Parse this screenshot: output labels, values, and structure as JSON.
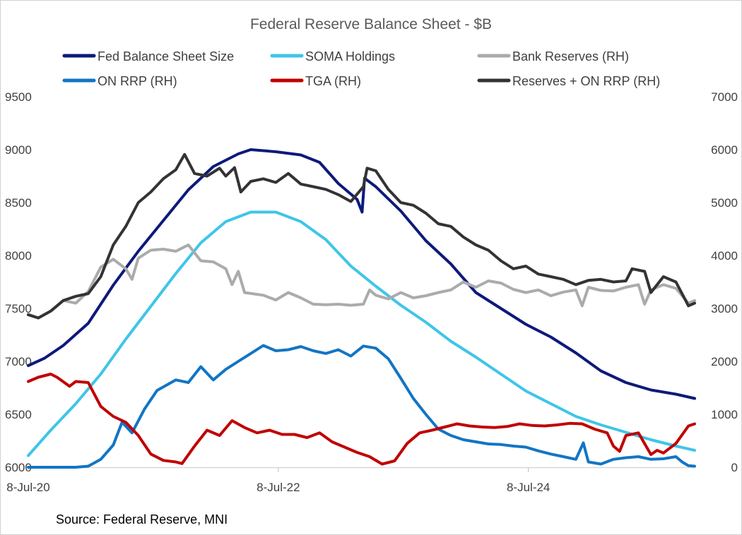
{
  "chart_data": {
    "type": "line",
    "title": "Federal Reserve Balance Sheet - $B",
    "source": "Source: Federal Reserve, MNI",
    "x_range": [
      2020.52,
      2025.85
    ],
    "x_ticks": [
      {
        "value": 2020.52,
        "label": "8-Jul-20"
      },
      {
        "value": 2022.52,
        "label": "8-Jul-22"
      },
      {
        "value": 2024.52,
        "label": "8-Jul-24"
      }
    ],
    "y_left": {
      "min": 6000,
      "max": 9500,
      "ticks": [
        "6000",
        "6500",
        "7000",
        "7500",
        "8000",
        "8500",
        "9000",
        "9500"
      ]
    },
    "y_right": {
      "min": 0,
      "max": 7000,
      "ticks": [
        "0",
        "1000",
        "2000",
        "3000",
        "4000",
        "5000",
        "6000",
        "7000"
      ]
    },
    "legend_position": "top",
    "series": [
      {
        "name": "Fed Balance Sheet Size",
        "axis": "left",
        "color": "#0d1a7a",
        "points": [
          [
            2020.52,
            6960
          ],
          [
            2020.65,
            7030
          ],
          [
            2020.8,
            7150
          ],
          [
            2021.0,
            7360
          ],
          [
            2021.2,
            7720
          ],
          [
            2021.4,
            8040
          ],
          [
            2021.6,
            8330
          ],
          [
            2021.8,
            8620
          ],
          [
            2022.0,
            8840
          ],
          [
            2022.2,
            8960
          ],
          [
            2022.3,
            9000
          ],
          [
            2022.5,
            8980
          ],
          [
            2022.7,
            8950
          ],
          [
            2022.85,
            8880
          ],
          [
            2023.0,
            8680
          ],
          [
            2023.15,
            8530
          ],
          [
            2023.19,
            8410
          ],
          [
            2023.21,
            8730
          ],
          [
            2023.3,
            8650
          ],
          [
            2023.5,
            8420
          ],
          [
            2023.7,
            8140
          ],
          [
            2023.9,
            7920
          ],
          [
            2024.1,
            7650
          ],
          [
            2024.3,
            7500
          ],
          [
            2024.5,
            7350
          ],
          [
            2024.7,
            7230
          ],
          [
            2024.9,
            7080
          ],
          [
            2025.1,
            6910
          ],
          [
            2025.3,
            6800
          ],
          [
            2025.5,
            6730
          ],
          [
            2025.7,
            6690
          ],
          [
            2025.85,
            6650
          ]
        ]
      },
      {
        "name": "SOMA Holdings",
        "axis": "left",
        "color": "#3fc5e8",
        "points": [
          [
            2020.52,
            6110
          ],
          [
            2020.7,
            6350
          ],
          [
            2020.9,
            6600
          ],
          [
            2021.1,
            6880
          ],
          [
            2021.3,
            7210
          ],
          [
            2021.5,
            7520
          ],
          [
            2021.7,
            7830
          ],
          [
            2021.9,
            8120
          ],
          [
            2022.1,
            8320
          ],
          [
            2022.3,
            8410
          ],
          [
            2022.5,
            8410
          ],
          [
            2022.7,
            8320
          ],
          [
            2022.9,
            8150
          ],
          [
            2023.1,
            7900
          ],
          [
            2023.3,
            7710
          ],
          [
            2023.5,
            7530
          ],
          [
            2023.7,
            7370
          ],
          [
            2023.9,
            7190
          ],
          [
            2024.1,
            7040
          ],
          [
            2024.3,
            6880
          ],
          [
            2024.5,
            6720
          ],
          [
            2024.7,
            6600
          ],
          [
            2024.9,
            6480
          ],
          [
            2025.1,
            6400
          ],
          [
            2025.3,
            6330
          ],
          [
            2025.5,
            6260
          ],
          [
            2025.7,
            6200
          ],
          [
            2025.85,
            6160
          ]
        ]
      },
      {
        "name": "Bank Reserves (RH)",
        "axis": "right",
        "color": "#ababab",
        "points": [
          [
            2020.52,
            2890
          ],
          [
            2020.6,
            2820
          ],
          [
            2020.7,
            2950
          ],
          [
            2020.8,
            3150
          ],
          [
            2020.9,
            3100
          ],
          [
            2021.0,
            3320
          ],
          [
            2021.1,
            3780
          ],
          [
            2021.2,
            3930
          ],
          [
            2021.3,
            3750
          ],
          [
            2021.35,
            3550
          ],
          [
            2021.4,
            3950
          ],
          [
            2021.5,
            4100
          ],
          [
            2021.6,
            4120
          ],
          [
            2021.7,
            4080
          ],
          [
            2021.8,
            4200
          ],
          [
            2021.9,
            3900
          ],
          [
            2022.0,
            3880
          ],
          [
            2022.1,
            3750
          ],
          [
            2022.15,
            3450
          ],
          [
            2022.2,
            3700
          ],
          [
            2022.25,
            3300
          ],
          [
            2022.4,
            3250
          ],
          [
            2022.5,
            3160
          ],
          [
            2022.6,
            3300
          ],
          [
            2022.7,
            3200
          ],
          [
            2022.8,
            3080
          ],
          [
            2022.9,
            3070
          ],
          [
            2023.0,
            3080
          ],
          [
            2023.1,
            3060
          ],
          [
            2023.2,
            3080
          ],
          [
            2023.25,
            3350
          ],
          [
            2023.3,
            3250
          ],
          [
            2023.4,
            3180
          ],
          [
            2023.5,
            3300
          ],
          [
            2023.6,
            3200
          ],
          [
            2023.7,
            3240
          ],
          [
            2023.8,
            3300
          ],
          [
            2023.9,
            3350
          ],
          [
            2024.0,
            3500
          ],
          [
            2024.1,
            3400
          ],
          [
            2024.2,
            3520
          ],
          [
            2024.3,
            3480
          ],
          [
            2024.4,
            3360
          ],
          [
            2024.5,
            3300
          ],
          [
            2024.6,
            3350
          ],
          [
            2024.7,
            3240
          ],
          [
            2024.8,
            3310
          ],
          [
            2024.9,
            3350
          ],
          [
            2024.95,
            3050
          ],
          [
            2025.0,
            3400
          ],
          [
            2025.1,
            3340
          ],
          [
            2025.2,
            3330
          ],
          [
            2025.3,
            3400
          ],
          [
            2025.4,
            3450
          ],
          [
            2025.45,
            3080
          ],
          [
            2025.5,
            3350
          ],
          [
            2025.6,
            3450
          ],
          [
            2025.7,
            3380
          ],
          [
            2025.8,
            3100
          ],
          [
            2025.85,
            3150
          ]
        ]
      },
      {
        "name": "ON RRP (RH)",
        "axis": "right",
        "color": "#1275c4",
        "points": [
          [
            2020.52,
            0
          ],
          [
            2020.8,
            0
          ],
          [
            2020.9,
            0
          ],
          [
            2021.0,
            20
          ],
          [
            2021.1,
            150
          ],
          [
            2021.2,
            420
          ],
          [
            2021.27,
            850
          ],
          [
            2021.35,
            650
          ],
          [
            2021.45,
            1100
          ],
          [
            2021.55,
            1450
          ],
          [
            2021.7,
            1650
          ],
          [
            2021.8,
            1600
          ],
          [
            2021.9,
            1900
          ],
          [
            2022.0,
            1650
          ],
          [
            2022.1,
            1850
          ],
          [
            2022.2,
            2000
          ],
          [
            2022.3,
            2150
          ],
          [
            2022.4,
            2300
          ],
          [
            2022.5,
            2200
          ],
          [
            2022.6,
            2220
          ],
          [
            2022.7,
            2280
          ],
          [
            2022.8,
            2200
          ],
          [
            2022.9,
            2150
          ],
          [
            2023.0,
            2220
          ],
          [
            2023.1,
            2100
          ],
          [
            2023.2,
            2290
          ],
          [
            2023.3,
            2250
          ],
          [
            2023.4,
            2050
          ],
          [
            2023.5,
            1680
          ],
          [
            2023.6,
            1300
          ],
          [
            2023.7,
            1000
          ],
          [
            2023.8,
            720
          ],
          [
            2023.9,
            600
          ],
          [
            2024.0,
            520
          ],
          [
            2024.1,
            480
          ],
          [
            2024.2,
            440
          ],
          [
            2024.3,
            430
          ],
          [
            2024.4,
            400
          ],
          [
            2024.5,
            380
          ],
          [
            2024.6,
            310
          ],
          [
            2024.7,
            250
          ],
          [
            2024.8,
            200
          ],
          [
            2024.9,
            150
          ],
          [
            2024.96,
            460
          ],
          [
            2025.0,
            100
          ],
          [
            2025.1,
            60
          ],
          [
            2025.2,
            150
          ],
          [
            2025.3,
            180
          ],
          [
            2025.4,
            200
          ],
          [
            2025.5,
            150
          ],
          [
            2025.6,
            160
          ],
          [
            2025.7,
            200
          ],
          [
            2025.75,
            100
          ],
          [
            2025.8,
            30
          ],
          [
            2025.85,
            20
          ]
        ]
      },
      {
        "name": "TGA (RH)",
        "axis": "right",
        "color": "#c00000",
        "points": [
          [
            2020.52,
            1620
          ],
          [
            2020.6,
            1700
          ],
          [
            2020.7,
            1760
          ],
          [
            2020.75,
            1700
          ],
          [
            2020.85,
            1530
          ],
          [
            2020.9,
            1620
          ],
          [
            2021.0,
            1600
          ],
          [
            2021.1,
            1150
          ],
          [
            2021.2,
            960
          ],
          [
            2021.3,
            850
          ],
          [
            2021.4,
            600
          ],
          [
            2021.5,
            250
          ],
          [
            2021.6,
            130
          ],
          [
            2021.7,
            100
          ],
          [
            2021.75,
            70
          ],
          [
            2021.85,
            400
          ],
          [
            2021.95,
            700
          ],
          [
            2022.05,
            600
          ],
          [
            2022.15,
            880
          ],
          [
            2022.25,
            750
          ],
          [
            2022.35,
            650
          ],
          [
            2022.45,
            700
          ],
          [
            2022.55,
            620
          ],
          [
            2022.65,
            620
          ],
          [
            2022.75,
            560
          ],
          [
            2022.85,
            650
          ],
          [
            2022.95,
            480
          ],
          [
            2023.05,
            380
          ],
          [
            2023.15,
            280
          ],
          [
            2023.25,
            200
          ],
          [
            2023.35,
            60
          ],
          [
            2023.45,
            120
          ],
          [
            2023.55,
            450
          ],
          [
            2023.65,
            650
          ],
          [
            2023.75,
            700
          ],
          [
            2023.85,
            760
          ],
          [
            2023.95,
            820
          ],
          [
            2024.05,
            780
          ],
          [
            2024.15,
            760
          ],
          [
            2024.25,
            750
          ],
          [
            2024.35,
            770
          ],
          [
            2024.45,
            820
          ],
          [
            2024.55,
            790
          ],
          [
            2024.65,
            780
          ],
          [
            2024.75,
            800
          ],
          [
            2024.85,
            830
          ],
          [
            2024.95,
            820
          ],
          [
            2025.05,
            720
          ],
          [
            2025.15,
            650
          ],
          [
            2025.2,
            400
          ],
          [
            2025.25,
            300
          ],
          [
            2025.3,
            600
          ],
          [
            2025.4,
            650
          ],
          [
            2025.5,
            240
          ],
          [
            2025.55,
            320
          ],
          [
            2025.6,
            270
          ],
          [
            2025.7,
            450
          ],
          [
            2025.8,
            780
          ],
          [
            2025.85,
            820
          ]
        ]
      },
      {
        "name": "Reserves + ON RRP (RH)",
        "axis": "right",
        "color": "#333333",
        "points": [
          [
            2020.52,
            2880
          ],
          [
            2020.6,
            2820
          ],
          [
            2020.7,
            2950
          ],
          [
            2020.8,
            3150
          ],
          [
            2020.9,
            3230
          ],
          [
            2021.0,
            3280
          ],
          [
            2021.1,
            3600
          ],
          [
            2021.2,
            4200
          ],
          [
            2021.3,
            4550
          ],
          [
            2021.4,
            5000
          ],
          [
            2021.5,
            5200
          ],
          [
            2021.6,
            5450
          ],
          [
            2021.7,
            5620
          ],
          [
            2021.77,
            5910
          ],
          [
            2021.85,
            5550
          ],
          [
            2021.95,
            5500
          ],
          [
            2022.05,
            5650
          ],
          [
            2022.1,
            5500
          ],
          [
            2022.17,
            5660
          ],
          [
            2022.22,
            5200
          ],
          [
            2022.3,
            5400
          ],
          [
            2022.4,
            5450
          ],
          [
            2022.5,
            5380
          ],
          [
            2022.6,
            5550
          ],
          [
            2022.7,
            5350
          ],
          [
            2022.8,
            5300
          ],
          [
            2022.9,
            5250
          ],
          [
            2023.0,
            5150
          ],
          [
            2023.1,
            5020
          ],
          [
            2023.2,
            5300
          ],
          [
            2023.23,
            5650
          ],
          [
            2023.3,
            5600
          ],
          [
            2023.4,
            5250
          ],
          [
            2023.5,
            5000
          ],
          [
            2023.6,
            4950
          ],
          [
            2023.7,
            4800
          ],
          [
            2023.8,
            4600
          ],
          [
            2023.9,
            4550
          ],
          [
            2024.0,
            4350
          ],
          [
            2024.1,
            4200
          ],
          [
            2024.2,
            4100
          ],
          [
            2024.3,
            3900
          ],
          [
            2024.4,
            3750
          ],
          [
            2024.5,
            3800
          ],
          [
            2024.6,
            3650
          ],
          [
            2024.7,
            3600
          ],
          [
            2024.8,
            3550
          ],
          [
            2024.9,
            3450
          ],
          [
            2025.0,
            3530
          ],
          [
            2025.1,
            3550
          ],
          [
            2025.2,
            3500
          ],
          [
            2025.3,
            3520
          ],
          [
            2025.35,
            3750
          ],
          [
            2025.45,
            3700
          ],
          [
            2025.5,
            3300
          ],
          [
            2025.6,
            3600
          ],
          [
            2025.7,
            3500
          ],
          [
            2025.8,
            3050
          ],
          [
            2025.85,
            3100
          ]
        ]
      }
    ]
  }
}
